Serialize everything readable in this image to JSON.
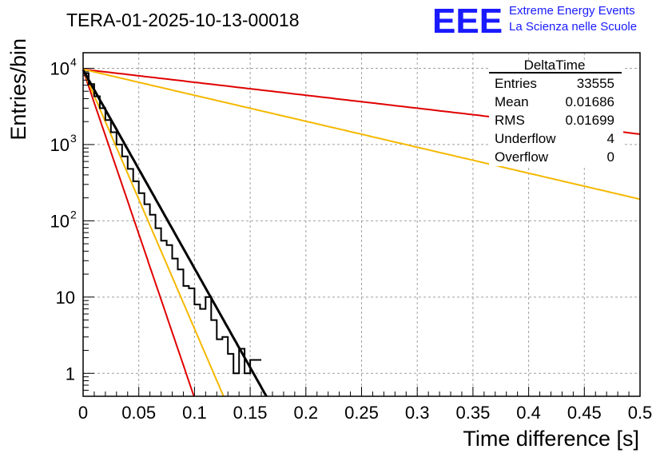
{
  "header": {
    "run_title": "TERA-01-2025-10-13-00018",
    "logo_text": "EEE",
    "org_line1": "Extreme Energy Events",
    "org_line2": "La Scienza nelle Scuole"
  },
  "stats_box": {
    "title": "DeltaTime",
    "rows": [
      {
        "label": "Entries",
        "value": "33555"
      },
      {
        "label": "Mean",
        "value": "0.01686"
      },
      {
        "label": "RMS",
        "value": "0.01699"
      },
      {
        "label": "Underflow",
        "value": "4"
      },
      {
        "label": "Overflow",
        "value": "0"
      }
    ]
  },
  "colors": {
    "histogram": "#000000",
    "fit": "#000000",
    "red_curve": "#e00000",
    "orange_curve": "#f5b800",
    "grid": "#a0a0a0",
    "logo": "#1a1aff"
  },
  "chart_data": {
    "type": "histogram",
    "title": "TERA-01-2025-10-13-00018",
    "xlabel": "Time difference [s]",
    "ylabel": "Entries/bin",
    "yscale": "log",
    "xlim": [
      0,
      0.5
    ],
    "ylim": [
      0.5,
      16000
    ],
    "grid": true,
    "x_ticks": [
      {
        "value": 0,
        "label": "0"
      },
      {
        "value": 0.05,
        "label": "0.05"
      },
      {
        "value": 0.1,
        "label": "0.1"
      },
      {
        "value": 0.15,
        "label": "0.15"
      },
      {
        "value": 0.2,
        "label": "0.2"
      },
      {
        "value": 0.25,
        "label": "0.25"
      },
      {
        "value": 0.3,
        "label": "0.3"
      },
      {
        "value": 0.35,
        "label": "0.35"
      },
      {
        "value": 0.4,
        "label": "0.4"
      },
      {
        "value": 0.45,
        "label": "0.45"
      },
      {
        "value": 0.5,
        "label": "0.5"
      }
    ],
    "y_ticks": [
      {
        "value": 1,
        "label": "1",
        "exp": ""
      },
      {
        "value": 10,
        "label": "10",
        "exp": ""
      },
      {
        "value": 100,
        "label": "10",
        "exp": "2"
      },
      {
        "value": 1000,
        "label": "10",
        "exp": "3"
      },
      {
        "value": 10000,
        "label": "10",
        "exp": "4"
      }
    ],
    "histogram": {
      "name": "DeltaTime",
      "bin_edges": [
        0,
        0.005,
        0.01,
        0.015,
        0.02,
        0.025,
        0.03,
        0.035,
        0.04,
        0.045,
        0.05,
        0.055,
        0.06,
        0.065,
        0.07,
        0.075,
        0.08,
        0.085,
        0.09,
        0.095,
        0.1,
        0.105,
        0.11,
        0.115,
        0.12,
        0.125,
        0.13,
        0.135,
        0.14,
        0.145,
        0.15,
        0.155
      ],
      "counts": [
        8600,
        6200,
        4300,
        3000,
        2100,
        1450,
        1000,
        700,
        480,
        330,
        230,
        165,
        120,
        80,
        55,
        48,
        32,
        23,
        14,
        13,
        8,
        7,
        10,
        5,
        2.8,
        3,
        1.8,
        1,
        2.1,
        1,
        1.5,
        1.5
      ]
    },
    "series": [
      {
        "name": "exponential fit",
        "color": "#000000",
        "kind": "exp",
        "a": 9500,
        "tau": 0.0167,
        "x_range": [
          0,
          0.17
        ]
      },
      {
        "name": "red steep",
        "color": "#e00000",
        "kind": "exp",
        "a": 9500,
        "tau": 0.0101,
        "x_range": [
          0,
          0.1
        ]
      },
      {
        "name": "orange steep",
        "color": "#f5b800",
        "kind": "exp",
        "a": 9500,
        "tau": 0.0128,
        "x_range": [
          0,
          0.127
        ]
      },
      {
        "name": "red shallow",
        "color": "#e00000",
        "kind": "exp",
        "a": 9700,
        "tau": 0.2555,
        "x_range": [
          0,
          0.5
        ]
      },
      {
        "name": "orange shallow",
        "color": "#f5b800",
        "kind": "exp",
        "a": 9700,
        "tau": 0.1275,
        "x_range": [
          0,
          0.5
        ]
      }
    ]
  }
}
